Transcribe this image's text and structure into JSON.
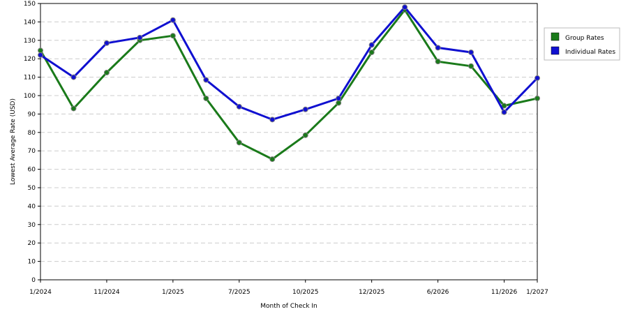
{
  "chart_data": {
    "type": "line",
    "xlabel": "Month of Check In",
    "ylabel": "Lowest Average Rate (USD)",
    "ylim": [
      0,
      150
    ],
    "y_ticks": [
      0,
      10,
      20,
      30,
      40,
      50,
      60,
      70,
      80,
      90,
      100,
      110,
      120,
      130,
      140,
      150
    ],
    "x_tick_labels": [
      "1/2024",
      "11/2024",
      "1/2025",
      "7/2025",
      "10/2025",
      "12/2025",
      "6/2026",
      "11/2026",
      "1/2027"
    ],
    "grid": "horizontal-dashed",
    "legend_position": "right",
    "series": [
      {
        "name": "Group Rates",
        "color": "#1a7a1a",
        "values": [
          124.5,
          93,
          112.5,
          130,
          132.5,
          98.5,
          74.5,
          65.5,
          78.5,
          96,
          123.5,
          146.5,
          118.5,
          116,
          94.5,
          98.5
        ]
      },
      {
        "name": "Individual Rates",
        "color": "#1010d0",
        "values": [
          122,
          110,
          128.5,
          131.5,
          141,
          108.5,
          94,
          87,
          92.5,
          98.5,
          127.5,
          148,
          126,
          123.5,
          91,
          109.5
        ]
      }
    ]
  }
}
